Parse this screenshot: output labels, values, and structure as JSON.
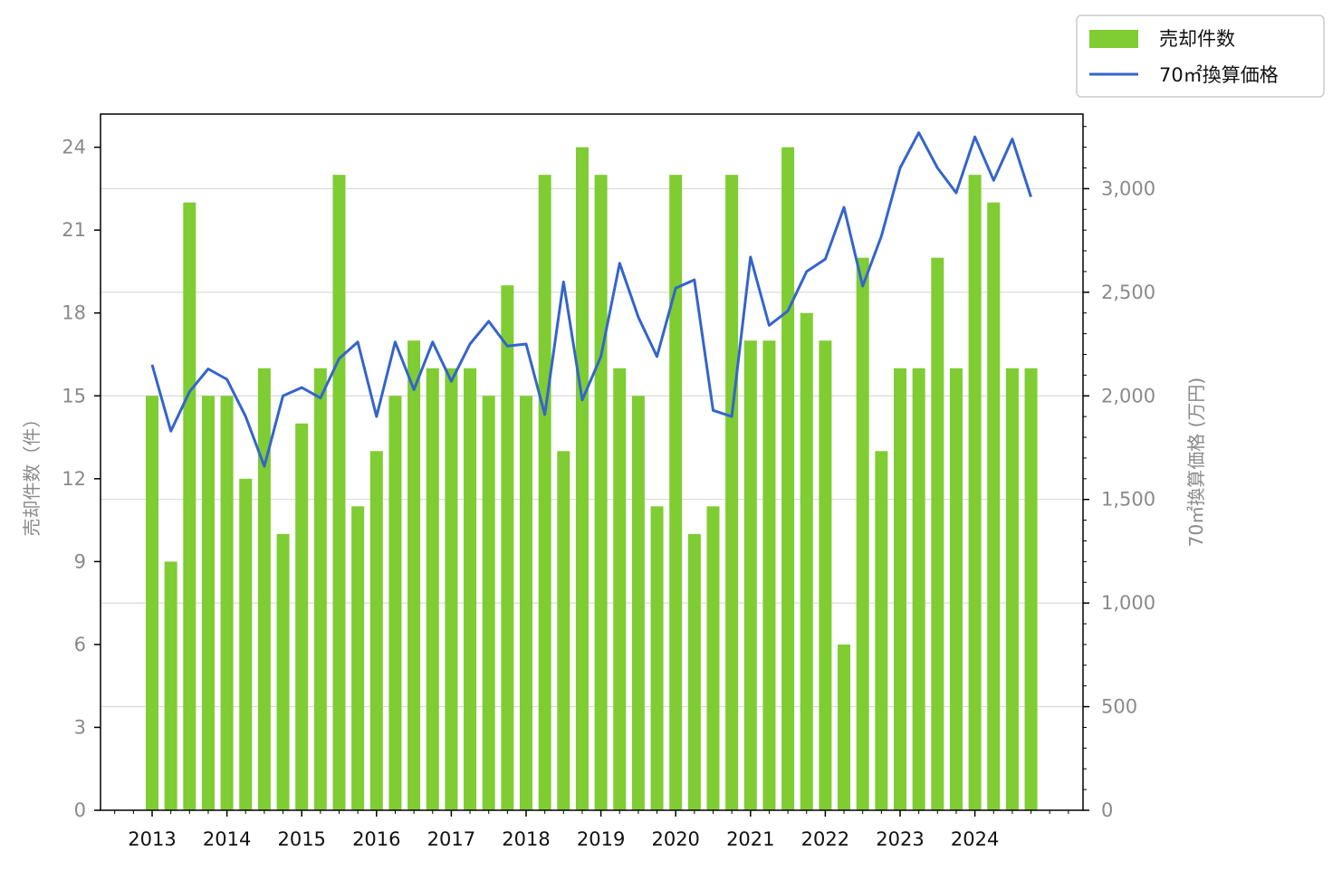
{
  "chart_data": {
    "type": "bar+line",
    "colors": {
      "bar": "#7fcc33",
      "line": "#3464cc",
      "grid": "#d9d9d9",
      "tick_text": "#8a8a8a"
    },
    "x_tick_labels": [
      "2013",
      "2014",
      "2015",
      "2016",
      "2017",
      "2018",
      "2019",
      "2020",
      "2021",
      "2022",
      "2023",
      "2024"
    ],
    "left_axis": {
      "label": "売却件数（件）",
      "ylim": [
        0,
        25.2
      ],
      "ticks": [
        0,
        3,
        6,
        9,
        12,
        15,
        18,
        21,
        24
      ],
      "tick_labels": [
        "0",
        "3",
        "6",
        "9",
        "12",
        "15",
        "18",
        "21",
        "24"
      ]
    },
    "right_axis": {
      "label": "70㎡換算価格 (万円)",
      "ylim": [
        0,
        3360
      ],
      "ticks": [
        0,
        500,
        1000,
        1500,
        2000,
        2500,
        3000
      ],
      "tick_labels": [
        "0",
        "500",
        "1,000",
        "1,500",
        "2,000",
        "2,500",
        "3,000"
      ],
      "grid": true
    },
    "legend": {
      "placement": "top-right, outside plot",
      "entries": [
        {
          "label": "売却件数",
          "kind": "bar"
        },
        {
          "label": "70㎡換算価格",
          "kind": "line"
        }
      ]
    },
    "series": [
      {
        "name": "売却件数",
        "kind": "bar",
        "axis": "left",
        "values": [
          15,
          9,
          22,
          15,
          15,
          12,
          16,
          10,
          14,
          16,
          23,
          11,
          13,
          15,
          17,
          16,
          16,
          16,
          15,
          19,
          15,
          23,
          13,
          24,
          23,
          16,
          15,
          11,
          23,
          10,
          11,
          23,
          17,
          17,
          24,
          18,
          17,
          6,
          20,
          13,
          16,
          16,
          20,
          16,
          23,
          22,
          16,
          16
        ]
      },
      {
        "name": "70㎡換算価格",
        "kind": "line",
        "axis": "right",
        "values": [
          2150,
          1830,
          2020,
          2130,
          2080,
          1900,
          1660,
          2000,
          2040,
          1990,
          2180,
          2260,
          1900,
          2260,
          2030,
          2260,
          2070,
          2250,
          2360,
          2240,
          2250,
          1910,
          2550,
          1980,
          2190,
          2640,
          2380,
          2190,
          2520,
          2560,
          1930,
          1900,
          2670,
          2340,
          2410,
          2600,
          2660,
          2910,
          2530,
          2770,
          3100,
          3270,
          3100,
          2980,
          3250,
          3040,
          3240,
          2960
        ]
      }
    ]
  }
}
